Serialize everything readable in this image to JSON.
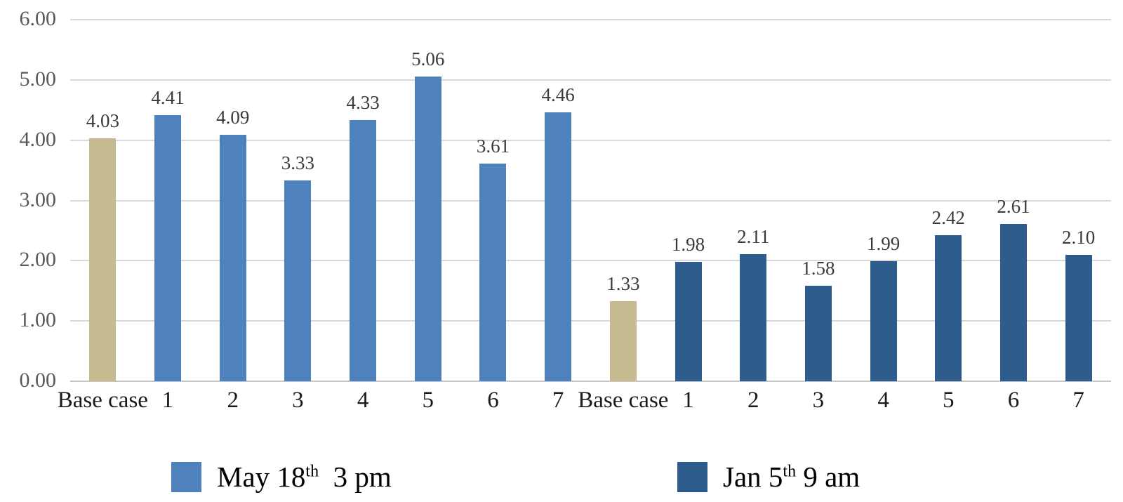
{
  "chart_data": {
    "type": "bar",
    "title": "",
    "xlabel": "",
    "ylabel": "",
    "ylim": [
      0,
      6
    ],
    "ytick_interval": 1,
    "ytick_labels": [
      "6.00",
      "5.00",
      "4.00",
      "3.00",
      "2.00",
      "1.00",
      "0.00"
    ],
    "grid": "horizontal",
    "legend_position": "bottom",
    "base_case_color": "#c6bb90",
    "groups": [
      {
        "name": "May 18th 3 pm",
        "color": "#4f81bd",
        "categories": [
          "Base case",
          "1",
          "2",
          "3",
          "4",
          "5",
          "6",
          "7"
        ],
        "values": [
          4.03,
          4.41,
          4.09,
          3.33,
          4.33,
          5.06,
          3.61,
          4.46
        ],
        "base_case_index": 0
      },
      {
        "name": "Jan 5th 9 am",
        "color": "#2e5c8c",
        "categories": [
          "Base case",
          "1",
          "2",
          "3",
          "4",
          "5",
          "6",
          "7"
        ],
        "values": [
          1.33,
          1.98,
          2.11,
          1.58,
          1.99,
          2.42,
          2.61,
          2.1
        ],
        "base_case_index": 0
      }
    ],
    "legend": [
      {
        "text_main": "May 18",
        "superscript": "th",
        "text_suffix": "  3 pm",
        "color": "#4f81bd"
      },
      {
        "text_main": "Jan 5",
        "superscript": "th",
        "text_suffix": " 9 am",
        "color": "#2e5c8c"
      }
    ]
  }
}
